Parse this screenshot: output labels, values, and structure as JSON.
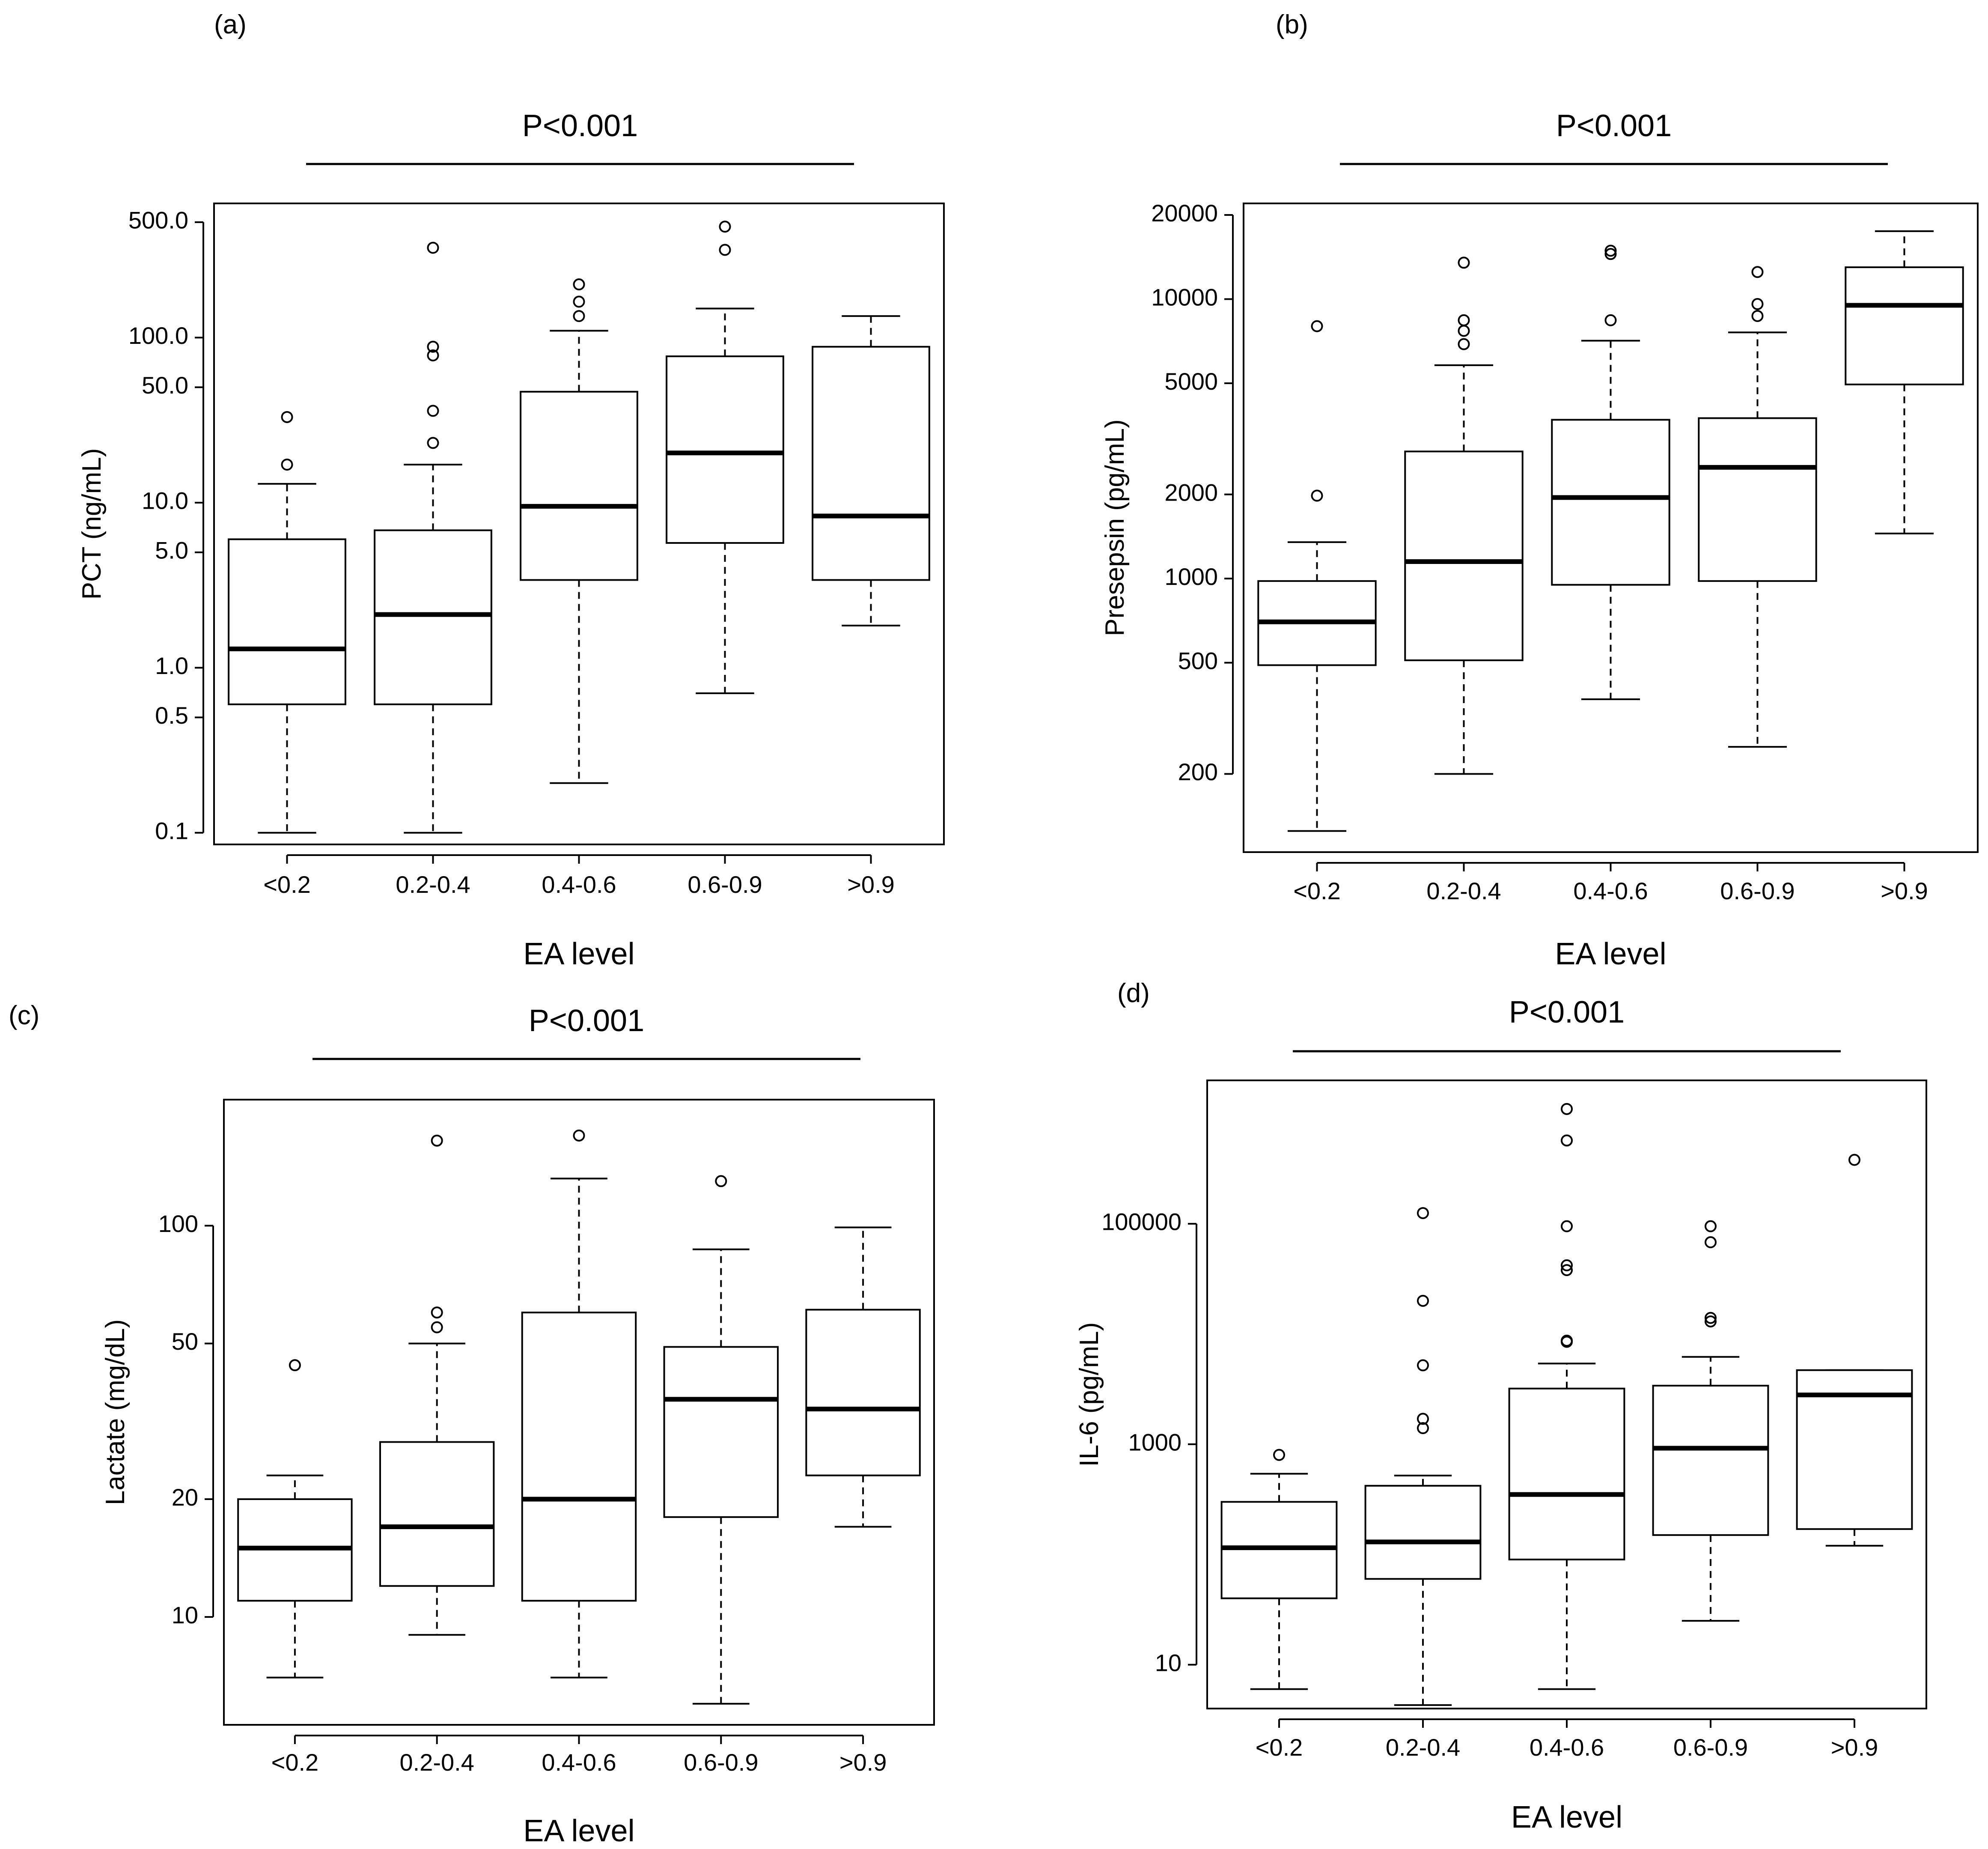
{
  "chart_data": [
    {
      "type": "box",
      "panel_label": "(a)",
      "title": "P<0.001",
      "xlabel": "EA level",
      "ylabel": "PCT (ng/mL)",
      "yscale": "log",
      "ylim": [
        0.085,
        650
      ],
      "yticks": [
        0.1,
        0.5,
        1.0,
        5.0,
        10.0,
        50.0,
        100.0,
        500.0
      ],
      "ytick_labels": [
        "0.1",
        "0.5",
        "1.0",
        "5.0",
        "10.0",
        "50.0",
        "100.0",
        "500.0"
      ],
      "categories": [
        "<0.2",
        "0.2-0.4",
        "0.4-0.6",
        "0.6-0.9",
        ">0.9"
      ],
      "boxes": [
        {
          "whisker_low": 0.1,
          "q1": 0.6,
          "median": 1.3,
          "q3": 6.0,
          "whisker_high": 13,
          "outliers": [
            17,
            33
          ]
        },
        {
          "whisker_low": 0.1,
          "q1": 0.6,
          "median": 2.1,
          "q3": 6.8,
          "whisker_high": 17,
          "outliers": [
            23,
            36,
            78,
            88,
            350
          ]
        },
        {
          "whisker_low": 0.2,
          "q1": 3.4,
          "median": 9.5,
          "q3": 47,
          "whisker_high": 110,
          "outliers": [
            135,
            165,
            210
          ]
        },
        {
          "whisker_low": 0.7,
          "q1": 5.7,
          "median": 20,
          "q3": 77,
          "whisker_high": 150,
          "outliers": [
            340,
            470
          ]
        },
        {
          "whisker_low": 1.8,
          "q1": 3.4,
          "median": 8.3,
          "q3": 88,
          "whisker_high": 135,
          "outliers": []
        }
      ]
    },
    {
      "type": "box",
      "panel_label": "(b)",
      "title": "P<0.001",
      "xlabel": "EA level",
      "ylabel": "Presepsin (pg/mL)",
      "yscale": "log",
      "ylim": [
        105,
        22000
      ],
      "yticks": [
        200,
        500,
        1000,
        2000,
        5000,
        10000,
        20000
      ],
      "ytick_labels": [
        "200",
        "500",
        "1000",
        "2000",
        "5000",
        "10000",
        "20000"
      ],
      "categories": [
        "<0.2",
        "0.2-0.4",
        "0.4-0.6",
        "0.6-0.9",
        ">0.9"
      ],
      "boxes": [
        {
          "whisker_low": 125,
          "q1": 490,
          "median": 700,
          "q3": 980,
          "whisker_high": 1350,
          "outliers": [
            1980,
            8000
          ]
        },
        {
          "whisker_low": 200,
          "q1": 510,
          "median": 1150,
          "q3": 2850,
          "whisker_high": 5800,
          "outliers": [
            6900,
            7700,
            8400,
            13500
          ]
        },
        {
          "whisker_low": 370,
          "q1": 950,
          "median": 1950,
          "q3": 3700,
          "whisker_high": 7100,
          "outliers": [
            8400,
            14500,
            14900
          ]
        },
        {
          "whisker_low": 250,
          "q1": 980,
          "median": 2500,
          "q3": 3750,
          "whisker_high": 7600,
          "outliers": [
            8700,
            9600,
            12500
          ]
        },
        {
          "whisker_low": 1450,
          "q1": 4950,
          "median": 9500,
          "q3": 13000,
          "whisker_high": 17500,
          "outliers": []
        }
      ]
    },
    {
      "type": "box",
      "panel_label": "(c)",
      "title": "P<0.001",
      "xlabel": "EA level",
      "ylabel": "Lactate (mg/dL)",
      "yscale": "log",
      "ylim": [
        5.3,
        210
      ],
      "yticks": [
        10,
        20,
        50,
        100
      ],
      "ytick_labels": [
        "10",
        "20",
        "50",
        "100"
      ],
      "categories": [
        "<0.2",
        "0.2-0.4",
        "0.4-0.6",
        "0.6-0.9",
        ">0.9"
      ],
      "boxes": [
        {
          "whisker_low": 7.0,
          "q1": 11,
          "median": 15,
          "q3": 20,
          "whisker_high": 23,
          "outliers": [
            44
          ]
        },
        {
          "whisker_low": 9.0,
          "q1": 12,
          "median": 17,
          "q3": 28,
          "whisker_high": 50,
          "outliers": [
            55,
            60,
            165
          ]
        },
        {
          "whisker_low": 7.0,
          "q1": 11,
          "median": 20,
          "q3": 60,
          "whisker_high": 132,
          "outliers": [
            170
          ]
        },
        {
          "whisker_low": 6.0,
          "q1": 18,
          "median": 36,
          "q3": 49,
          "whisker_high": 87,
          "outliers": [
            130
          ]
        },
        {
          "whisker_low": 17,
          "q1": 23,
          "median": 34,
          "q3": 61,
          "whisker_high": 99,
          "outliers": []
        }
      ]
    },
    {
      "type": "box",
      "panel_label": "(d)",
      "title": "P<0.001",
      "xlabel": "EA level",
      "ylabel": "IL-6 (pg/mL)",
      "yscale": "log",
      "ylim": [
        4,
        2000000
      ],
      "yticks": [
        10,
        1000,
        100000
      ],
      "ytick_labels": [
        "10",
        "1000",
        "100000"
      ],
      "categories": [
        "<0.2",
        "0.2-0.4",
        "0.4-0.6",
        "0.6-0.9",
        ">0.9"
      ],
      "boxes": [
        {
          "whisker_low": 6,
          "q1": 40,
          "median": 115,
          "q3": 300,
          "whisker_high": 540,
          "outliers": [
            800
          ]
        },
        {
          "whisker_low": 4.3,
          "q1": 60,
          "median": 130,
          "q3": 420,
          "whisker_high": 520,
          "outliers": [
            1400,
            1700,
            5200,
            20000,
            125000
          ]
        },
        {
          "whisker_low": 6,
          "q1": 90,
          "median": 350,
          "q3": 3200,
          "whisker_high": 5400,
          "outliers": [
            8500,
            8700,
            38000,
            42000,
            95000,
            570000,
            1100000
          ]
        },
        {
          "whisker_low": 25,
          "q1": 150,
          "median": 920,
          "q3": 3400,
          "whisker_high": 6200,
          "outliers": [
            13000,
            14000,
            68000,
            95000
          ]
        },
        {
          "whisker_low": 120,
          "q1": 170,
          "median": 2800,
          "q3": 4700,
          "whisker_high": 4700,
          "outliers": [
            380000
          ]
        }
      ]
    }
  ]
}
